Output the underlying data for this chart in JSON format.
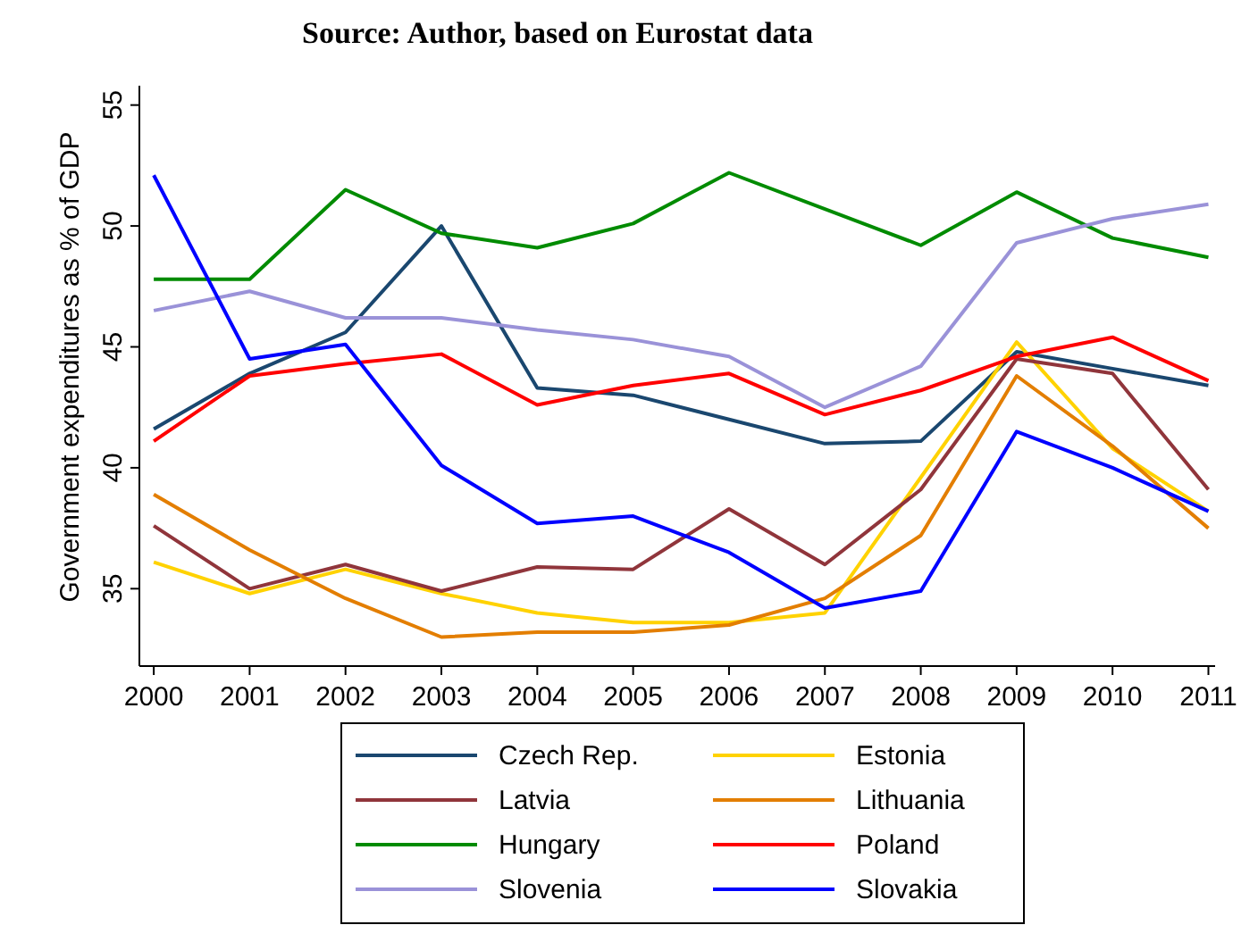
{
  "chart_data": {
    "type": "line",
    "annotations": [
      "Source: Author, based on Eurostat data"
    ],
    "ylabel": "Government expenditures as % of GDP",
    "x": [
      2000,
      2001,
      2002,
      2003,
      2004,
      2005,
      2006,
      2007,
      2008,
      2009,
      2010,
      2011
    ],
    "xlim": [
      1999.85,
      2011.07
    ],
    "xticks": [
      2000,
      2001,
      2002,
      2003,
      2004,
      2005,
      2006,
      2007,
      2008,
      2009,
      2010,
      2011
    ],
    "ylim": [
      31.8,
      55.8
    ],
    "yticks": [
      35,
      40,
      45,
      50,
      55
    ],
    "grid": false,
    "legend": "bottom",
    "series": [
      {
        "name": "Czech Rep.",
        "color": "#1a476f",
        "values": [
          41.6,
          43.9,
          45.6,
          50.0,
          43.3,
          43.0,
          42.0,
          41.0,
          41.1,
          44.8,
          44.1,
          43.4
        ]
      },
      {
        "name": "Estonia",
        "color": "#ffd200",
        "values": [
          36.1,
          34.8,
          35.8,
          34.8,
          34.0,
          33.6,
          33.6,
          34.0,
          39.6,
          45.2,
          40.8,
          38.2
        ]
      },
      {
        "name": "Latvia",
        "color": "#90353b",
        "values": [
          37.6,
          35.0,
          36.0,
          34.9,
          35.9,
          35.8,
          38.3,
          36.0,
          39.1,
          44.5,
          43.9,
          39.1
        ]
      },
      {
        "name": "Lithuania",
        "color": "#e37e00",
        "values": [
          38.9,
          36.6,
          34.6,
          33.0,
          33.2,
          33.2,
          33.5,
          34.6,
          37.2,
          43.8,
          40.9,
          37.5
        ]
      },
      {
        "name": "Hungary",
        "color": "#008b00",
        "values": [
          47.8,
          47.8,
          51.5,
          49.7,
          49.1,
          50.1,
          52.2,
          50.7,
          49.2,
          51.4,
          49.5,
          48.7
        ]
      },
      {
        "name": "Poland",
        "color": "#ff0000",
        "values": [
          41.1,
          43.8,
          44.3,
          44.7,
          42.6,
          43.4,
          43.9,
          42.2,
          43.2,
          44.6,
          45.4,
          43.6
        ]
      },
      {
        "name": "Slovenia",
        "color": "#9a92d8",
        "values": [
          46.5,
          47.3,
          46.2,
          46.2,
          45.7,
          45.3,
          44.6,
          42.5,
          44.2,
          49.3,
          50.3,
          50.9
        ]
      },
      {
        "name": "Slovakia",
        "color": "#0000ff",
        "values": [
          52.1,
          44.5,
          45.1,
          40.1,
          37.7,
          38.0,
          36.5,
          34.2,
          34.9,
          41.5,
          40.0,
          38.2
        ]
      }
    ]
  }
}
